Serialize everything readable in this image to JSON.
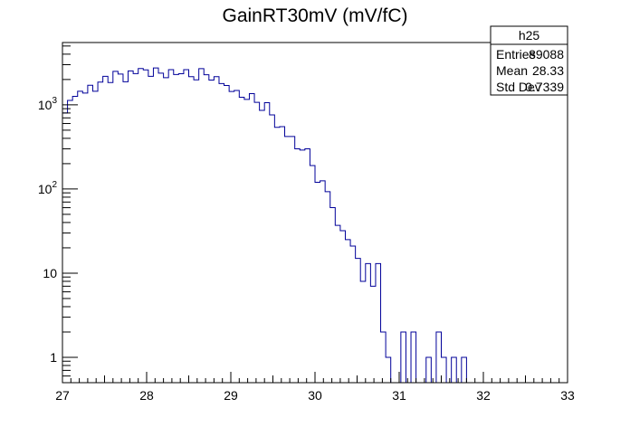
{
  "chart_data": {
    "type": "histogram",
    "title": "GainRT30mV (mV/fC)",
    "xlabel": "",
    "ylabel": "",
    "xlim": [
      27,
      33
    ],
    "ylim": [
      0.5,
      5500
    ],
    "y_scale": "log",
    "x_ticks": [
      27,
      28,
      29,
      30,
      31,
      32,
      33
    ],
    "y_ticks": [
      {
        "value": 1,
        "label": "1"
      },
      {
        "value": 10,
        "label": "10"
      },
      {
        "value": 100,
        "label": "10^2"
      },
      {
        "value": 1000,
        "label": "10^3"
      }
    ],
    "bin_start": 27,
    "bin_width": 0.06,
    "counts": [
      800,
      1130,
      1260,
      1450,
      1380,
      1710,
      1450,
      1860,
      2180,
      1840,
      2500,
      2320,
      1880,
      2530,
      2350,
      2700,
      2600,
      2180,
      2740,
      2380,
      2100,
      2620,
      2290,
      2340,
      2620,
      2160,
      1980,
      2690,
      2280,
      1970,
      2160,
      1790,
      1700,
      1440,
      1480,
      1230,
      1160,
      1360,
      1070,
      860,
      1060,
      760,
      540,
      550,
      420,
      420,
      300,
      290,
      300,
      190,
      120,
      125,
      93,
      60,
      37,
      32,
      25,
      21,
      15,
      8,
      13,
      7,
      13,
      2,
      1,
      0,
      0,
      2,
      0,
      2,
      0,
      0,
      1,
      0,
      2,
      1,
      0,
      1,
      0,
      1,
      0
    ],
    "series": [
      {
        "name": "h25",
        "color": "#000099"
      }
    ],
    "stats": {
      "name": "h25",
      "rows": [
        {
          "label": "Entries",
          "value": "89088"
        },
        {
          "label": "Mean",
          "value": "28.33"
        },
        {
          "label": "Std Dev",
          "value": "0.7339"
        }
      ]
    },
    "grid": false,
    "legend_position": "top-right"
  }
}
